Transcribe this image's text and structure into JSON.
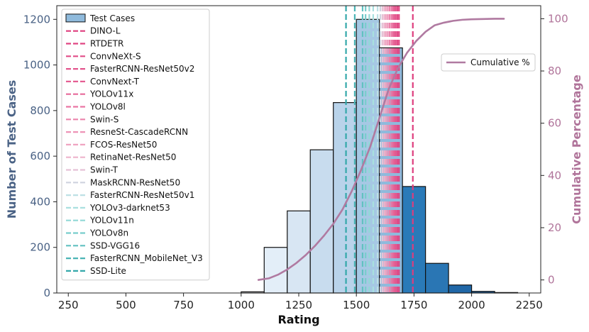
{
  "chart_data": {
    "type": "bar",
    "xlabel": "Rating",
    "ylabel": "Number of Test Cases",
    "y2label": "Cumulative Percentage",
    "xlim": [
      200,
      2300
    ],
    "ylim": [
      0,
      1260
    ],
    "y2lim": [
      -5,
      105
    ],
    "xticks": [
      250,
      500,
      750,
      1000,
      1250,
      1500,
      1750,
      2000,
      2250
    ],
    "yticks": [
      0,
      200,
      400,
      600,
      800,
      1000,
      1200
    ],
    "y2ticks": [
      0,
      20,
      40,
      60,
      80,
      100
    ],
    "histogram": {
      "name": "Test Cases",
      "bin_width": 100,
      "bin_starts": [
        1000,
        1100,
        1200,
        1300,
        1400,
        1500,
        1600,
        1700,
        1800,
        1900,
        2000,
        2100
      ],
      "counts": [
        5,
        200,
        360,
        628,
        835,
        1200,
        1075,
        467,
        130,
        35,
        7,
        2
      ],
      "colors": [
        "#eef4fb",
        "#e3eef8",
        "#d8e6f3",
        "#c8dcee",
        "#b9d3ea",
        "#a6c8e4",
        "#8fbadc",
        "#2a7ab8",
        "#2a76b4",
        "#2067a7",
        "#1f5d98",
        "#1e568e"
      ]
    },
    "cumulative": {
      "name": "Cumulative %",
      "color": "#b07aa1",
      "x": [
        1075,
        1120,
        1160,
        1200,
        1240,
        1280,
        1320,
        1360,
        1400,
        1440,
        1480,
        1520,
        1560,
        1600,
        1640,
        1680,
        1720,
        1760,
        1800,
        1840,
        1880,
        1920,
        1960,
        2000,
        2050,
        2100,
        2140
      ],
      "y": [
        0,
        0.6,
        2,
        4,
        6.5,
        9.5,
        13,
        17,
        21.5,
        27,
        34,
        42,
        51,
        62,
        73,
        81,
        87,
        91.5,
        95,
        97.5,
        98.5,
        99.2,
        99.6,
        99.8,
        99.9,
        100,
        100
      ]
    },
    "model_lines": [
      {
        "name": "DINO-L",
        "x": 1745,
        "color": "#de3d7d"
      },
      {
        "name": "RTDETR",
        "x": 1685,
        "color": "#e04482"
      },
      {
        "name": "ConvNeXt-S",
        "x": 1678,
        "color": "#e14c87"
      },
      {
        "name": "FasterRCNN-ResNet50v2",
        "x": 1671,
        "color": "#e3558d"
      },
      {
        "name": "ConvNext-T",
        "x": 1665,
        "color": "#e55e93"
      },
      {
        "name": "YOLOv11x",
        "x": 1659,
        "color": "#e7699a"
      },
      {
        "name": "YOLOv8l",
        "x": 1652,
        "color": "#e976a3"
      },
      {
        "name": "Swin-S",
        "x": 1644,
        "color": "#eb84ac"
      },
      {
        "name": "ResneSt-CascadeRCNN",
        "x": 1636,
        "color": "#ed94b7"
      },
      {
        "name": "FCOS-ResNet50",
        "x": 1628,
        "color": "#efa4c1"
      },
      {
        "name": "RetinaNet-ResNet50",
        "x": 1621,
        "color": "#edb4cb"
      },
      {
        "name": "Swin-T",
        "x": 1613,
        "color": "#e5c2d6"
      },
      {
        "name": "MaskRCNN-ResNet50",
        "x": 1604,
        "color": "#cfd3df"
      },
      {
        "name": "FasterRCNN-ResNet50v1",
        "x": 1592,
        "color": "#bde0e5"
      },
      {
        "name": "YOLOv3-darknet53",
        "x": 1573,
        "color": "#a9e0df"
      },
      {
        "name": "YOLOv11n",
        "x": 1556,
        "color": "#91d8d6"
      },
      {
        "name": "YOLOv8n",
        "x": 1540,
        "color": "#78cdcc"
      },
      {
        "name": "SSD-VGG16",
        "x": 1527,
        "color": "#61c1c1"
      },
      {
        "name": "FasterRCNN_MobileNet_V3",
        "x": 1493,
        "color": "#4ab4b5"
      },
      {
        "name": "SSD-Lite",
        "x": 1455,
        "color": "#34a8aa"
      }
    ],
    "legend_placement": "top-left",
    "legend2_placement": "upper-right",
    "grid": false,
    "title": ""
  }
}
